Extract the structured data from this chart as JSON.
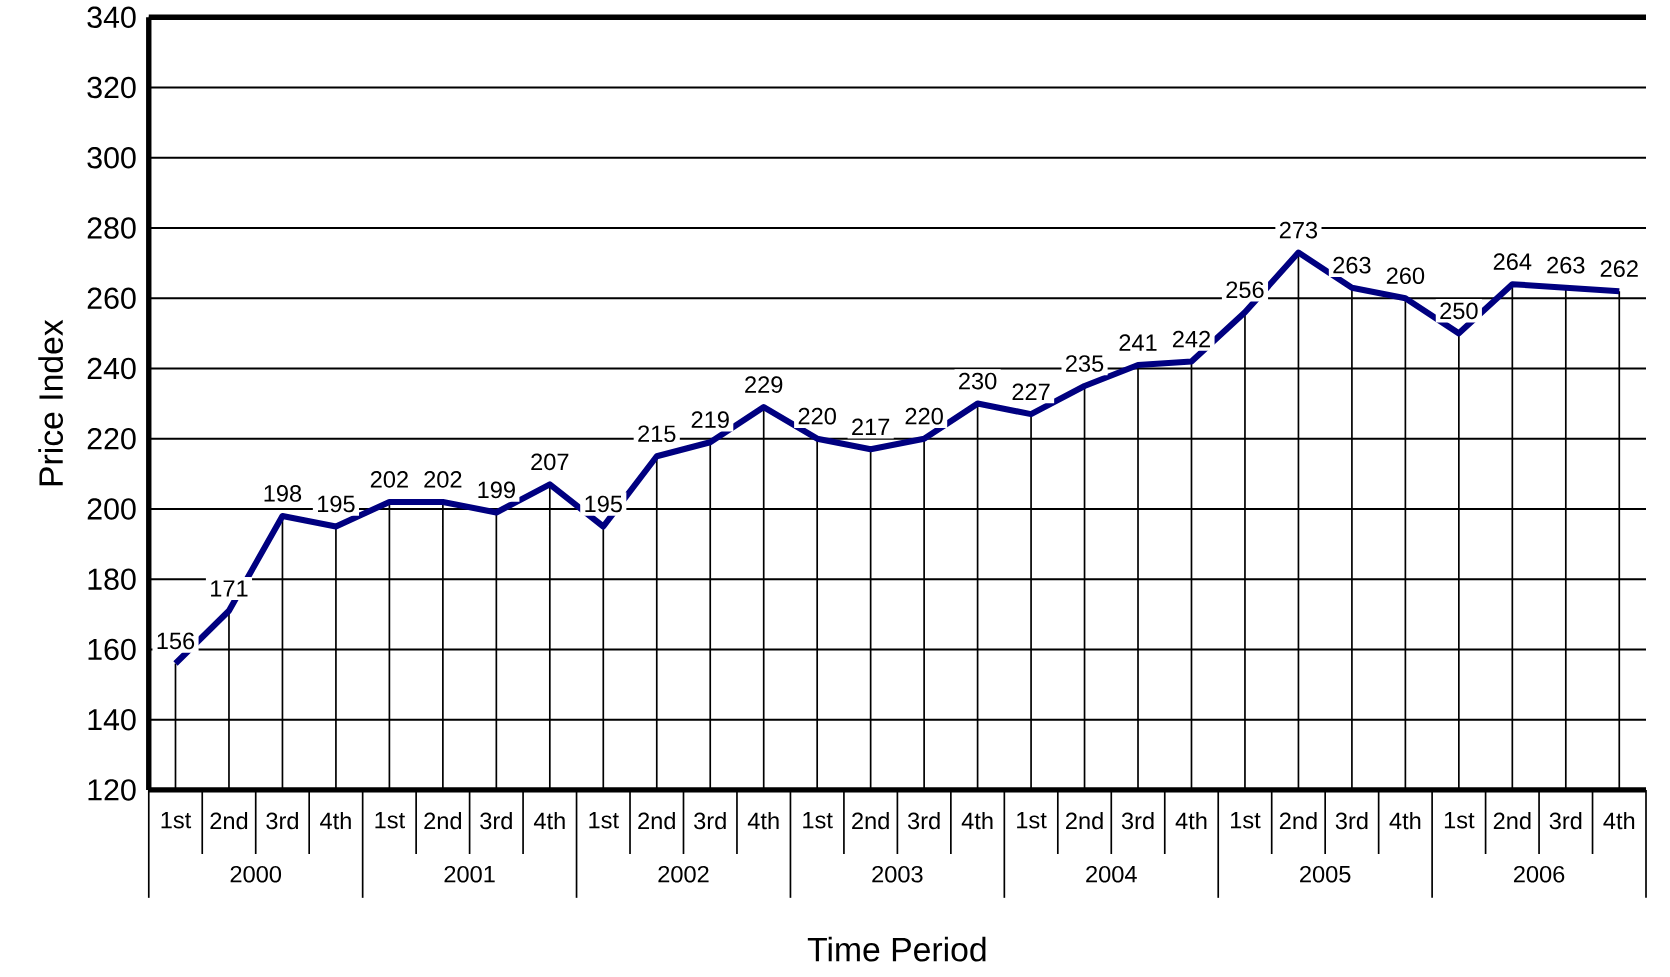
{
  "chart_data": {
    "type": "line",
    "xlabel": "Time Period",
    "ylabel": "Price Index",
    "categories": [
      "1st",
      "2nd",
      "3rd",
      "4th",
      "1st",
      "2nd",
      "3rd",
      "4th",
      "1st",
      "2nd",
      "3rd",
      "4th",
      "1st",
      "2nd",
      "3rd",
      "4th",
      "1st",
      "2nd",
      "3rd",
      "4th",
      "1st",
      "2nd",
      "3rd",
      "4th",
      "1st",
      "2nd",
      "3rd",
      "4th"
    ],
    "annotations": [
      "2000",
      "2001",
      "2002",
      "2003",
      "2004",
      "2005",
      "2006"
    ],
    "values": [
      156,
      171,
      198,
      195,
      202,
      202,
      199,
      207,
      195,
      215,
      219,
      229,
      220,
      217,
      220,
      230,
      227,
      235,
      241,
      242,
      256,
      273,
      263,
      260,
      250,
      264,
      263,
      262
    ],
    "color": "#000080",
    "ylim": [
      120,
      340
    ],
    "yticks": [
      120,
      140,
      160,
      180,
      200,
      220,
      240,
      260,
      280,
      300,
      320,
      340
    ],
    "grid": "y",
    "data_labels": true,
    "marker": "none",
    "line_style": "solid"
  }
}
